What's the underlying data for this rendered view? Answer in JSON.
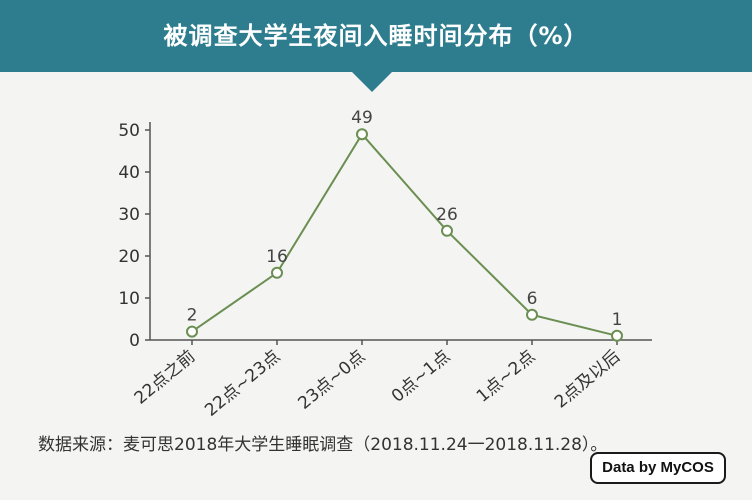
{
  "header": {
    "title": "被调查大学生夜间入睡时间分布（%）",
    "background_color": "#2e7d8e",
    "text_color": "#ffffff"
  },
  "chart_data": {
    "type": "line",
    "title": "被调查大学生夜间入睡时间分布（%）",
    "categories": [
      "22点之前",
      "22点~23点",
      "23点~0点",
      "0点~1点",
      "1点~2点",
      "2点及以后"
    ],
    "series": [
      {
        "values": [
          2,
          16,
          49,
          26,
          6,
          1
        ]
      }
    ],
    "data_labels": [
      "2",
      "16",
      "49",
      "26",
      "6",
      "1"
    ],
    "yticks": [
      0,
      10,
      20,
      30,
      40,
      50
    ],
    "ylim": [
      0,
      50
    ],
    "xlabel": "",
    "ylabel": "",
    "grid": false,
    "line_color": "#6b8f52",
    "marker_fill": "#ffffff"
  },
  "footer": {
    "source": "数据来源：麦可思2018年大学生睡眠调查（2018.11.24一2018.11.28）。",
    "logo_text": "Data by MyCOS"
  }
}
